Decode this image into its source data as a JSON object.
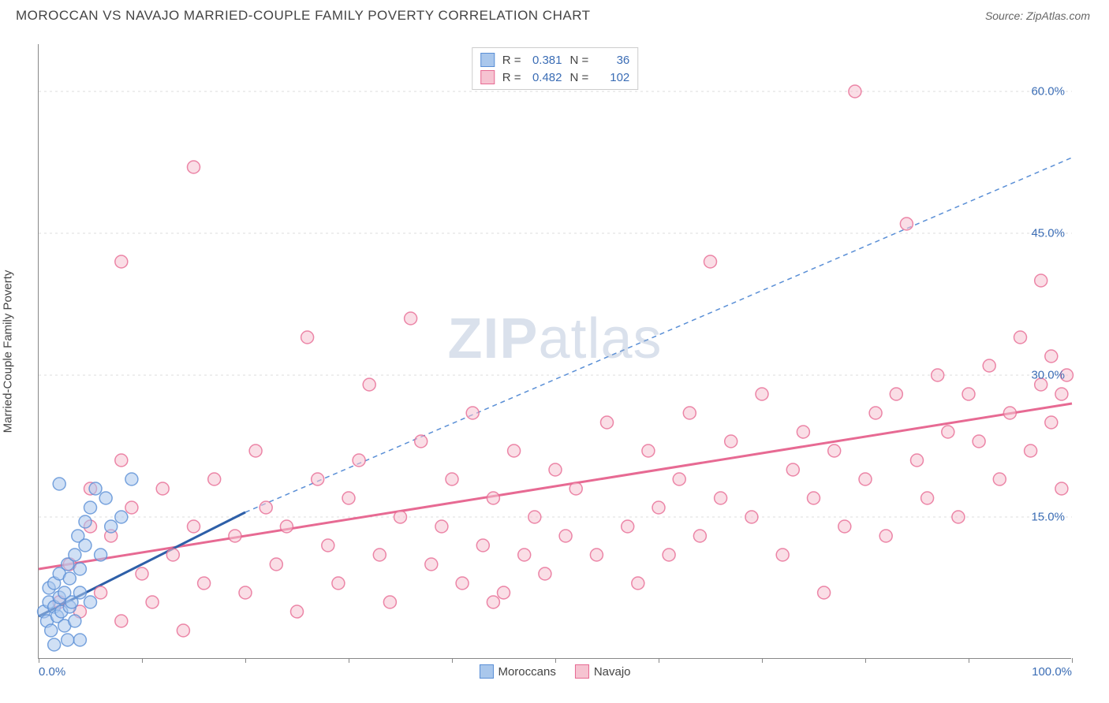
{
  "title": "MOROCCAN VS NAVAJO MARRIED-COUPLE FAMILY POVERTY CORRELATION CHART",
  "source_label": "Source: ",
  "source_name": "ZipAtlas.com",
  "ylabel": "Married-Couple Family Poverty",
  "watermark_a": "ZIP",
  "watermark_b": "atlas",
  "chart": {
    "type": "scatter",
    "xlim": [
      0,
      100
    ],
    "ylim": [
      0,
      65
    ],
    "background_color": "#ffffff",
    "grid_color": "#dddddd",
    "axis_color": "#888888",
    "tick_label_color": "#3b6db5",
    "xtick_positions": [
      0,
      10,
      20,
      30,
      40,
      50,
      60,
      70,
      80,
      90,
      100
    ],
    "xtick_labels": {
      "0": "0.0%",
      "100": "100.0%"
    },
    "ytick_positions": [
      15,
      30,
      45,
      60
    ],
    "ytick_labels": {
      "15": "15.0%",
      "30": "30.0%",
      "45": "45.0%",
      "60": "60.0%"
    },
    "marker_radius": 8,
    "marker_opacity": 0.55,
    "marker_stroke_width": 1.5
  },
  "series": {
    "moroccans": {
      "label": "Moroccans",
      "color_fill": "#a9c7ec",
      "color_stroke": "#5a8fd6",
      "r_value": "0.381",
      "n_value": "36",
      "trend_solid": {
        "x1": 0,
        "y1": 4.5,
        "x2": 20,
        "y2": 15.5
      },
      "trend_dashed": {
        "x1": 20,
        "y1": 15.5,
        "x2": 100,
        "y2": 53
      },
      "points": [
        [
          0.5,
          5
        ],
        [
          0.8,
          4
        ],
        [
          1,
          6
        ],
        [
          1,
          7.5
        ],
        [
          1.2,
          3
        ],
        [
          1.5,
          8
        ],
        [
          1.5,
          5.5
        ],
        [
          1.8,
          4.5
        ],
        [
          2,
          6.5
        ],
        [
          2,
          9
        ],
        [
          2.2,
          5
        ],
        [
          2.5,
          7
        ],
        [
          2.5,
          3.5
        ],
        [
          2.8,
          10
        ],
        [
          3,
          5.5
        ],
        [
          3,
          8.5
        ],
        [
          3.2,
          6
        ],
        [
          3.5,
          11
        ],
        [
          3.5,
          4
        ],
        [
          3.8,
          13
        ],
        [
          4,
          7
        ],
        [
          4,
          9.5
        ],
        [
          4.5,
          12
        ],
        [
          4.5,
          14.5
        ],
        [
          5,
          16
        ],
        [
          5,
          6
        ],
        [
          5.5,
          18
        ],
        [
          6,
          11
        ],
        [
          6.5,
          17
        ],
        [
          7,
          14
        ],
        [
          8,
          15
        ],
        [
          9,
          19
        ],
        [
          2,
          18.5
        ],
        [
          4,
          2
        ],
        [
          1.5,
          1.5
        ],
        [
          2.8,
          2
        ]
      ]
    },
    "navajo": {
      "label": "Navajo",
      "color_fill": "#f6c3d1",
      "color_stroke": "#e76a93",
      "r_value": "0.482",
      "n_value": "102",
      "trend_solid": {
        "x1": 0,
        "y1": 9.5,
        "x2": 100,
        "y2": 27
      },
      "points": [
        [
          2,
          6
        ],
        [
          3,
          10
        ],
        [
          4,
          5
        ],
        [
          5,
          14
        ],
        [
          5,
          18
        ],
        [
          6,
          7
        ],
        [
          7,
          13
        ],
        [
          8,
          21
        ],
        [
          8,
          4
        ],
        [
          9,
          16
        ],
        [
          10,
          9
        ],
        [
          11,
          6
        ],
        [
          12,
          18
        ],
        [
          13,
          11
        ],
        [
          14,
          3
        ],
        [
          15,
          14
        ],
        [
          15,
          52
        ],
        [
          16,
          8
        ],
        [
          17,
          19
        ],
        [
          8,
          42
        ],
        [
          19,
          13
        ],
        [
          20,
          7
        ],
        [
          21,
          22
        ],
        [
          22,
          16
        ],
        [
          23,
          10
        ],
        [
          24,
          14
        ],
        [
          25,
          5
        ],
        [
          26,
          34
        ],
        [
          27,
          19
        ],
        [
          28,
          12
        ],
        [
          29,
          8
        ],
        [
          30,
          17
        ],
        [
          31,
          21
        ],
        [
          32,
          29
        ],
        [
          33,
          11
        ],
        [
          34,
          6
        ],
        [
          35,
          15
        ],
        [
          36,
          36
        ],
        [
          37,
          23
        ],
        [
          38,
          10
        ],
        [
          39,
          14
        ],
        [
          40,
          19
        ],
        [
          41,
          8
        ],
        [
          42,
          26
        ],
        [
          43,
          12
        ],
        [
          44,
          17
        ],
        [
          45,
          7
        ],
        [
          44,
          6
        ],
        [
          46,
          22
        ],
        [
          47,
          11
        ],
        [
          48,
          15
        ],
        [
          49,
          9
        ],
        [
          50,
          20
        ],
        [
          51,
          13
        ],
        [
          52,
          18
        ],
        [
          54,
          11
        ],
        [
          55,
          25
        ],
        [
          57,
          14
        ],
        [
          58,
          8
        ],
        [
          59,
          22
        ],
        [
          60,
          16
        ],
        [
          61,
          11
        ],
        [
          62,
          19
        ],
        [
          63,
          26
        ],
        [
          64,
          13
        ],
        [
          65,
          42
        ],
        [
          66,
          17
        ],
        [
          67,
          23
        ],
        [
          69,
          15
        ],
        [
          70,
          28
        ],
        [
          72,
          11
        ],
        [
          73,
          20
        ],
        [
          74,
          24
        ],
        [
          75,
          17
        ],
        [
          76,
          7
        ],
        [
          77,
          22
        ],
        [
          78,
          14
        ],
        [
          79,
          60
        ],
        [
          80,
          19
        ],
        [
          81,
          26
        ],
        [
          82,
          13
        ],
        [
          83,
          28
        ],
        [
          84,
          46
        ],
        [
          85,
          21
        ],
        [
          86,
          17
        ],
        [
          87,
          30
        ],
        [
          88,
          24
        ],
        [
          89,
          15
        ],
        [
          90,
          28
        ],
        [
          91,
          23
        ],
        [
          92,
          31
        ],
        [
          93,
          19
        ],
        [
          94,
          26
        ],
        [
          95,
          34
        ],
        [
          96,
          22
        ],
        [
          97,
          29
        ],
        [
          97,
          40
        ],
        [
          98,
          25
        ],
        [
          98,
          32
        ],
        [
          99,
          28
        ],
        [
          99,
          18
        ],
        [
          99.5,
          30
        ]
      ]
    }
  },
  "legend_stats": {
    "r_label": "R =",
    "n_label": "N ="
  }
}
